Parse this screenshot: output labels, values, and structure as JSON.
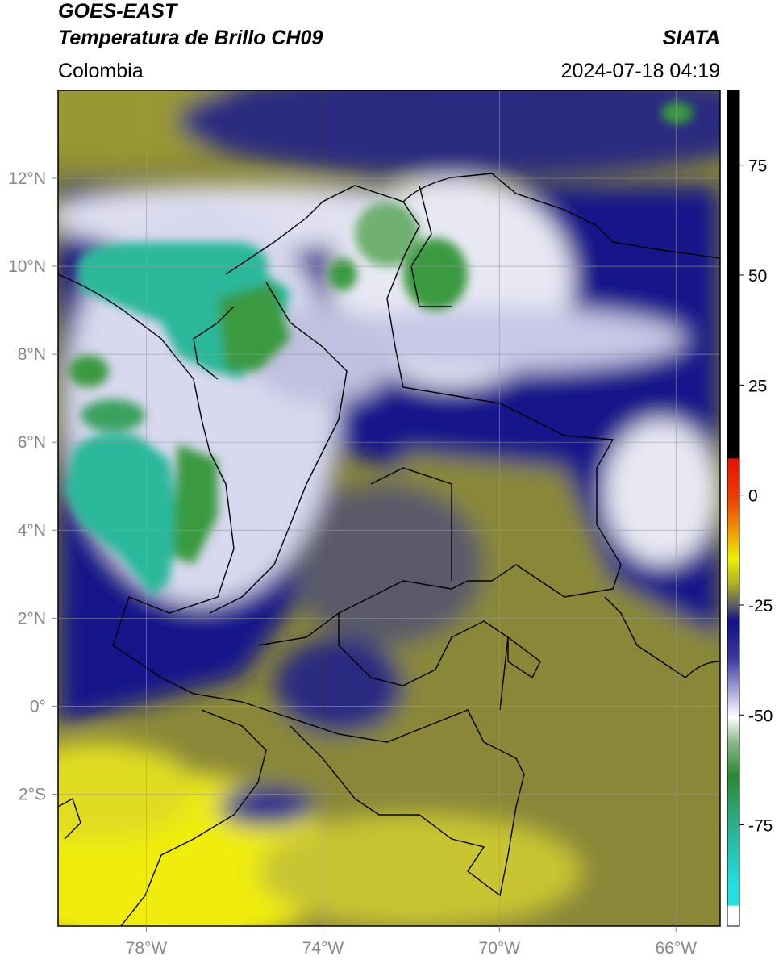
{
  "header": {
    "title": "GOES-EAST",
    "subtitle": "Temperatura de Brillo CH09",
    "source": "SIATA",
    "region": "Colombia",
    "datetime": "2024-07-18 04:19"
  },
  "map": {
    "xlim": [
      -80,
      -65
    ],
    "ylim": [
      -5,
      14
    ],
    "xticks": [
      {
        "value": -78,
        "label": "78°W"
      },
      {
        "value": -74,
        "label": "74°W"
      },
      {
        "value": -70,
        "label": "70°W"
      },
      {
        "value": -66,
        "label": "66°W"
      }
    ],
    "yticks": [
      {
        "value": 12,
        "label": "12°N"
      },
      {
        "value": 10,
        "label": "10°N"
      },
      {
        "value": 8,
        "label": "8°N"
      },
      {
        "value": 6,
        "label": "6°N"
      },
      {
        "value": 4,
        "label": "4°N"
      },
      {
        "value": 2,
        "label": "2°N"
      },
      {
        "value": 0,
        "label": "0°"
      },
      {
        "value": -2,
        "label": "2°S"
      }
    ],
    "grid": true
  },
  "colorbar": {
    "lim": [
      -98,
      92
    ],
    "ticks": [
      75,
      50,
      25,
      0,
      -25,
      -50,
      -75
    ]
  }
}
